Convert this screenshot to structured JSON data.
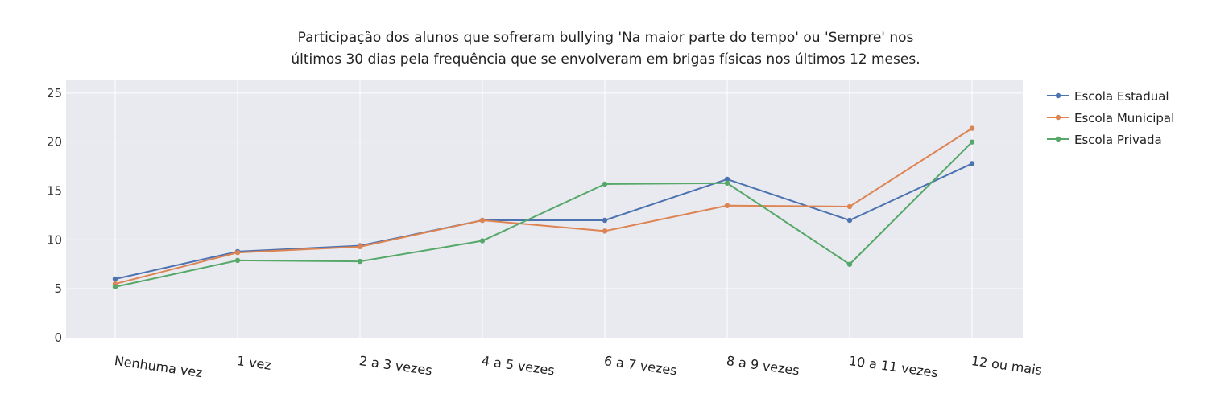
{
  "chart_data": {
    "type": "line",
    "title": "Participação dos alunos que sofreram bullying 'Na maior parte do tempo' ou 'Sempre' nos últimos 30 dias pela frequência que se envolveram em brigas físicas nos últimos 12 meses.",
    "title_lines": [
      "Participação dos alunos que sofreram bullying 'Na maior parte do tempo' ou 'Sempre' nos",
      "últimos 30 dias pela frequência que se envolveram em brigas físicas nos últimos 12 meses."
    ],
    "categories": [
      "Nenhuma vez",
      "1 vez",
      "2 a 3 vezes",
      "4 a 5 vezes",
      "6 a 7 vezes",
      "8 a 9 vezes",
      "10 a 11 vezes",
      "12 ou mais"
    ],
    "y_ticks": [
      0,
      5,
      10,
      15,
      20,
      25
    ],
    "ylim": [
      0,
      25
    ],
    "grid": true,
    "legend_position": "top-right",
    "background_color": "#e9e9f0",
    "series": [
      {
        "name": "Escola Estadual",
        "color": "#4c72b0",
        "values": [
          6.0,
          8.8,
          9.4,
          12.0,
          12.0,
          16.2,
          12.0,
          17.8
        ]
      },
      {
        "name": "Escola Municipal",
        "color": "#dd8452",
        "values": [
          5.5,
          8.7,
          9.3,
          12.0,
          10.9,
          13.5,
          13.4,
          21.4
        ]
      },
      {
        "name": "Escola Privada",
        "color": "#55a868",
        "values": [
          5.2,
          7.9,
          7.8,
          9.9,
          15.7,
          15.8,
          7.5,
          20.0
        ]
      }
    ]
  }
}
